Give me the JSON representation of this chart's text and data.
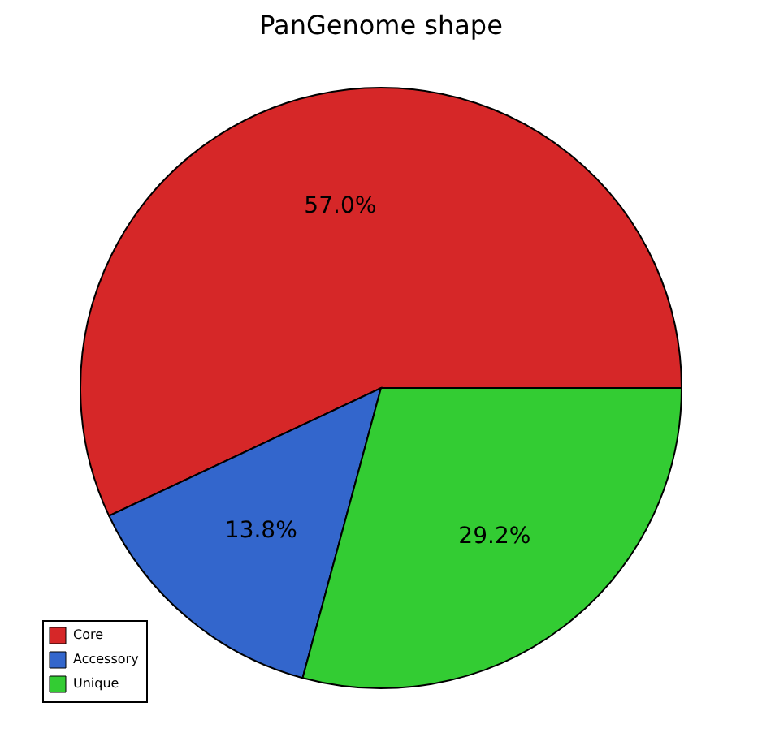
{
  "chart_data": {
    "type": "pie",
    "title": "PanGenome shape",
    "categories": [
      "Core",
      "Accessory",
      "Unique"
    ],
    "values": [
      57.0,
      13.8,
      29.2
    ],
    "colors": [
      "#d62728",
      "#3366cc",
      "#33cc33"
    ],
    "value_labels": [
      "57.0%",
      "13.8%",
      "29.2%"
    ],
    "legend": "bottom left"
  }
}
